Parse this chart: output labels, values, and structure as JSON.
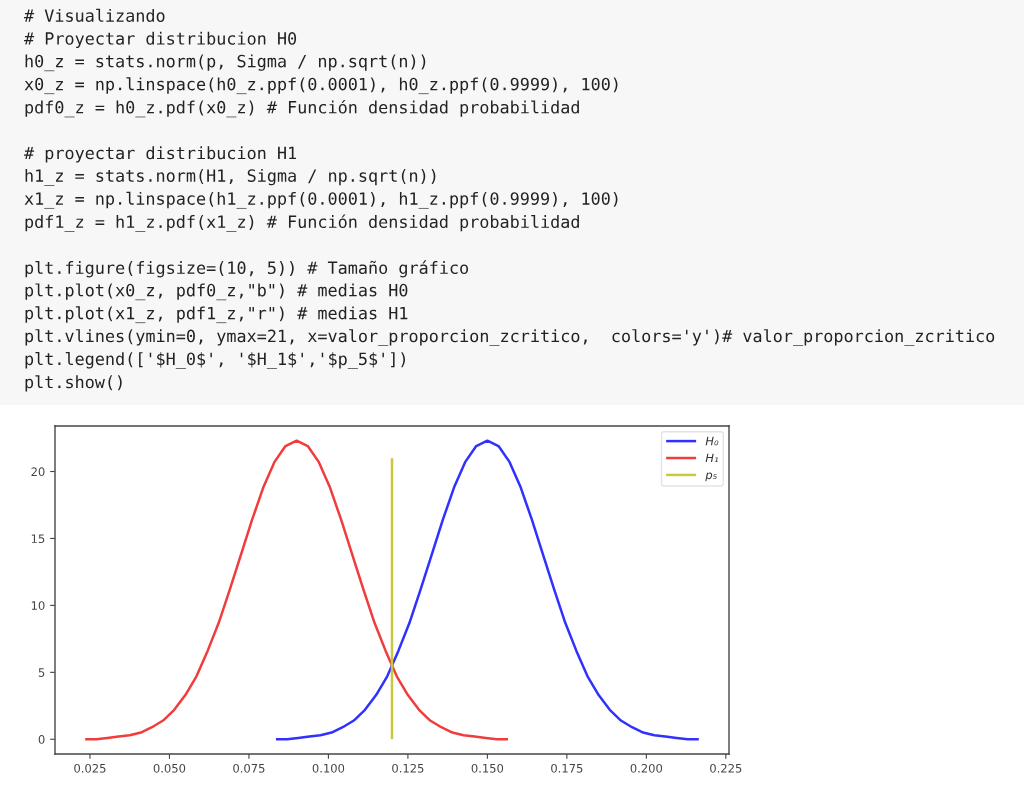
{
  "chart_data": {
    "type": "line",
    "annotations": [
      "# Visualizando\n# Proyectar distribucion H0\nh0_z = stats.norm(p, Sigma / np.sqrt(n))\nx0_z = np.linspace(h0_z.ppf(0.0001), h0_z.ppf(0.9999), 100)\npdf0_z = h0_z.pdf(x0_z) # Función densidad probabilidad",
      "# proyectar distribucion H1\nh1_z = stats.norm(H1, Sigma / np.sqrt(n))\nx1_z = np.linspace(h1_z.ppf(0.0001), h1_z.ppf(0.9999), 100)\npdf1_z = h1_z.pdf(x1_z) # Función densidad probabilidad",
      "plt.figure(figsize=(10, 5)) # Tamaño gráfico\nplt.plot(x0_z, pdf0_z,\"b\") # medias H0\nplt.plot(x1_z, pdf1_z,\"r\") # medias H1\nplt.vlines(ymin=0, ymax=21, x=valor_proporcion_zcritico,  colors='y')# valor_proporcion_zcritico\nplt.legend(['$H_0$', '$H_1$','$p_5$'])\nplt.show()"
    ],
    "series": [
      {
        "name": "H₀",
        "color": "#3030ff",
        "x": [
          0.0835,
          0.087,
          0.0905,
          0.094,
          0.0975,
          0.101,
          0.1045,
          0.108,
          0.1115,
          0.115,
          0.1185,
          0.122,
          0.1255,
          0.129,
          0.1325,
          0.136,
          0.1395,
          0.143,
          0.1465,
          0.15,
          0.1535,
          0.157,
          0.1605,
          0.164,
          0.1675,
          0.171,
          0.1745,
          0.178,
          0.1815,
          0.185,
          0.1885,
          0.192,
          0.1955,
          0.199,
          0.2025,
          0.206,
          0.2095,
          0.213,
          0.2165
        ],
        "values": [
          0.0,
          0.0,
          0.1,
          0.2,
          0.3,
          0.5,
          0.9,
          1.4,
          2.2,
          3.3,
          4.7,
          6.6,
          8.7,
          11.2,
          13.8,
          16.4,
          18.8,
          20.7,
          21.9,
          22.3,
          21.9,
          20.7,
          18.8,
          16.4,
          13.8,
          11.2,
          8.7,
          6.6,
          4.7,
          3.3,
          2.2,
          1.4,
          0.9,
          0.5,
          0.3,
          0.2,
          0.1,
          0.0,
          0.0
        ]
      },
      {
        "name": "H₁",
        "color": "#f03c3c",
        "x": [
          0.0235,
          0.027,
          0.0305,
          0.034,
          0.0375,
          0.041,
          0.0445,
          0.048,
          0.0515,
          0.055,
          0.0585,
          0.062,
          0.0655,
          0.069,
          0.0725,
          0.076,
          0.0795,
          0.083,
          0.0865,
          0.09,
          0.0935,
          0.097,
          0.1005,
          0.104,
          0.1075,
          0.111,
          0.1145,
          0.118,
          0.1215,
          0.125,
          0.1285,
          0.132,
          0.1355,
          0.139,
          0.1425,
          0.146,
          0.1495,
          0.153,
          0.1565
        ],
        "values": [
          0.0,
          0.0,
          0.1,
          0.2,
          0.3,
          0.5,
          0.9,
          1.4,
          2.2,
          3.3,
          4.7,
          6.6,
          8.7,
          11.2,
          13.8,
          16.4,
          18.8,
          20.7,
          21.9,
          22.3,
          21.9,
          20.7,
          18.8,
          16.4,
          13.8,
          11.2,
          8.7,
          6.6,
          4.7,
          3.3,
          2.2,
          1.4,
          0.9,
          0.5,
          0.3,
          0.2,
          0.1,
          0.0,
          0.0
        ]
      },
      {
        "name": "p₅",
        "color": "#c8c83c",
        "x": [
          0.12,
          0.12
        ],
        "values": [
          0,
          21
        ]
      }
    ],
    "xlim": [
      0.014,
      0.226
    ],
    "ylim": [
      -1.1,
      23.4
    ],
    "xticks": [
      0.025,
      {
        "value": 0.05,
        "label": "0.050"
      },
      0.075,
      {
        "value": 0.1,
        "label": "0.100"
      },
      0.125,
      {
        "value": 0.15,
        "label": "0.150"
      },
      0.175,
      {
        "value": 0.2,
        "label": "0.200"
      },
      0.225
    ],
    "yticks": [
      0,
      5,
      10,
      15,
      20
    ],
    "legend": "top right"
  }
}
